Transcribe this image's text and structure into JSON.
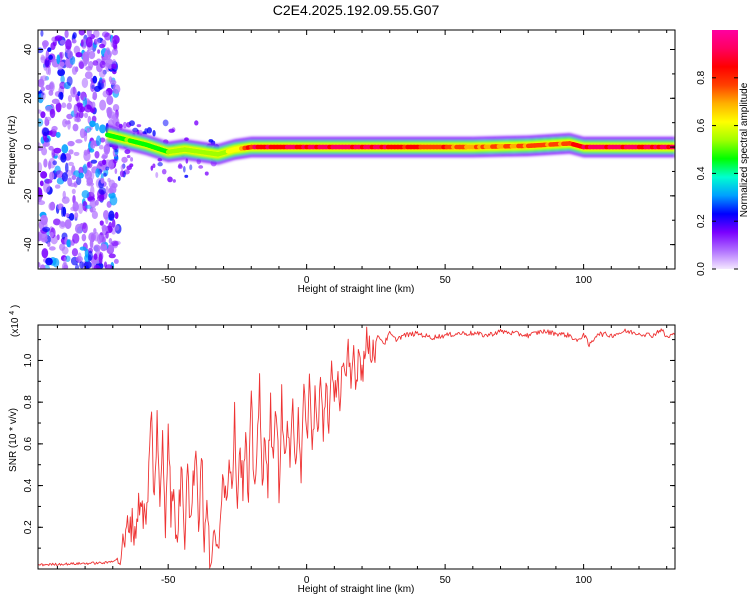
{
  "title": "C2E4.2025.192.09.55.G07",
  "chart_data": [
    {
      "type": "heatmap",
      "xlabel": "Height of straight line (km)",
      "ylabel": "Frequency (Hz)",
      "xlim": [
        -97,
        133
      ],
      "ylim": [
        -50,
        48
      ],
      "x_ticks": [
        "-50",
        "0",
        "50",
        "100"
      ],
      "x_tick_values": [
        -50,
        0,
        50,
        100
      ],
      "y_ticks": [
        "-40",
        "-20",
        "0",
        "20",
        "40"
      ],
      "y_tick_values": [
        -40,
        -20,
        0,
        20,
        40
      ],
      "colorbar": {
        "label": "Normalized spectral amplitude",
        "range": [
          0,
          1
        ],
        "ticks": [
          "0.0",
          "0.2",
          "0.4",
          "0.6",
          "0.8"
        ],
        "tick_values": [
          0.0,
          0.2,
          0.4,
          0.6,
          0.8
        ],
        "colors": [
          "#f4e8ff",
          "#b070ff",
          "#7a00ff",
          "#0000ff",
          "#00a0ff",
          "#00ffd0",
          "#00ff00",
          "#a0ff00",
          "#ffff00",
          "#ffb000",
          "#ff4000",
          "#ff0000",
          "#ff0060",
          "#ff00a0"
        ]
      },
      "noise_region_x": [
        -97,
        -70
      ],
      "ridge": [
        {
          "x": -72,
          "freq": 5,
          "amplitude": 0.45
        },
        {
          "x": -65,
          "freq": 3,
          "amplitude": 0.5
        },
        {
          "x": -58,
          "freq": 1,
          "amplitude": 0.48
        },
        {
          "x": -50,
          "freq": -2,
          "amplitude": 0.5
        },
        {
          "x": -44,
          "freq": -1,
          "amplitude": 0.52
        },
        {
          "x": -38,
          "freq": -2,
          "amplitude": 0.55
        },
        {
          "x": -32,
          "freq": -3,
          "amplitude": 0.55
        },
        {
          "x": -26,
          "freq": -1,
          "amplitude": 0.6
        },
        {
          "x": -20,
          "freq": 0,
          "amplitude": 0.85
        },
        {
          "x": 0,
          "freq": 0,
          "amplitude": 0.9
        },
        {
          "x": 20,
          "freq": 0,
          "amplitude": 0.9
        },
        {
          "x": 40,
          "freq": 0,
          "amplitude": 0.82
        },
        {
          "x": 60,
          "freq": 0,
          "amplitude": 0.72
        },
        {
          "x": 80,
          "freq": 0.5,
          "amplitude": 0.72
        },
        {
          "x": 95,
          "freq": 1.5,
          "amplitude": 0.8
        },
        {
          "x": 100,
          "freq": 0,
          "amplitude": 0.9
        },
        {
          "x": 120,
          "freq": 0,
          "amplitude": 0.9
        },
        {
          "x": 133,
          "freq": 0,
          "amplitude": 0.88
        }
      ]
    },
    {
      "type": "line",
      "xlabel": "Height of straight line (km)",
      "ylabel": "SNR (10 * v/v)",
      "y_multiplier": "(x10",
      "y_multiplier_exp": "4",
      "xlim": [
        -97,
        133
      ],
      "ylim": [
        0,
        1.17
      ],
      "x_ticks": [
        "-50",
        "0",
        "50",
        "100"
      ],
      "x_tick_values": [
        -50,
        0,
        50,
        100
      ],
      "y_ticks": [
        "0.2",
        "0.4",
        "0.6",
        "0.8",
        "1.0"
      ],
      "y_tick_values": [
        0.2,
        0.4,
        0.6,
        0.8,
        1.0
      ],
      "line_color": "#ee3333",
      "series": [
        {
          "x": [
            -97,
            -85,
            -72,
            -68,
            -66,
            -64,
            -62,
            -60,
            -58,
            -56,
            -55,
            -54,
            -53,
            -52,
            -51,
            -50,
            -49,
            -48,
            -47,
            -46,
            -45,
            -44,
            -43,
            -42,
            -41,
            -40,
            -39,
            -38,
            -37,
            -36,
            -35,
            -34,
            -33,
            -32,
            -31,
            -30,
            -29,
            -28,
            -27,
            -26,
            -25,
            -24,
            -23,
            -22,
            -21,
            -20,
            -19,
            -18,
            -17,
            -16,
            -15,
            -14,
            -13,
            -12,
            -11,
            -10,
            -9,
            -8,
            -7,
            -6,
            -5,
            -4,
            -3,
            -2,
            -1,
            0,
            1,
            2,
            3,
            4,
            5,
            6,
            7,
            8,
            9,
            10,
            11,
            12,
            13,
            14,
            15,
            16,
            17,
            18,
            19,
            20,
            22,
            24,
            26,
            28,
            30,
            32,
            35,
            40,
            45,
            50,
            55,
            60,
            65,
            70,
            75,
            80,
            85,
            90,
            95,
            98,
            100,
            102,
            105,
            110,
            115,
            120,
            125,
            128,
            130,
            133
          ],
          "y": [
            0.02,
            0.025,
            0.03,
            0.05,
            0.1,
            0.24,
            0.18,
            0.35,
            0.2,
            0.74,
            0.3,
            0.76,
            0.25,
            0.66,
            0.2,
            0.72,
            0.28,
            0.35,
            0.12,
            0.3,
            0.5,
            0.15,
            0.58,
            0.2,
            0.4,
            0.62,
            0.18,
            0.6,
            0.1,
            0.3,
            0.05,
            0.1,
            0.12,
            0.08,
            0.35,
            0.48,
            0.3,
            0.57,
            0.42,
            0.71,
            0.35,
            0.6,
            0.38,
            0.62,
            0.3,
            0.8,
            0.4,
            0.58,
            0.85,
            0.35,
            0.7,
            0.42,
            0.78,
            0.45,
            0.82,
            0.4,
            0.8,
            0.5,
            0.72,
            0.45,
            0.78,
            0.55,
            0.76,
            0.48,
            0.82,
            0.62,
            0.9,
            0.55,
            0.85,
            0.62,
            0.9,
            0.65,
            0.92,
            0.7,
            0.95,
            0.75,
            0.98,
            0.8,
            1.0,
            0.85,
            1.02,
            0.88,
            1.05,
            0.9,
            1.08,
            0.95,
            1.1,
            1.05,
            1.12,
            1.08,
            1.13,
            1.1,
            1.12,
            1.13,
            1.11,
            1.12,
            1.13,
            1.13,
            1.12,
            1.14,
            1.13,
            1.12,
            1.14,
            1.13,
            1.12,
            1.09,
            1.13,
            1.07,
            1.13,
            1.12,
            1.14,
            1.13,
            1.12,
            1.15,
            1.11,
            1.13
          ]
        }
      ]
    }
  ]
}
